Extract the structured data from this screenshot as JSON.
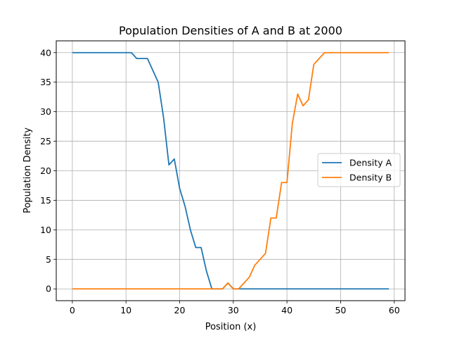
{
  "chart_data": {
    "type": "line",
    "title": "Population Densities of A and B at 2000",
    "xlabel": "Position (x)",
    "ylabel": "Population Density",
    "xlim": [
      -3,
      62
    ],
    "ylim": [
      -2,
      42
    ],
    "xticks": [
      0,
      10,
      20,
      30,
      40,
      50,
      60
    ],
    "yticks": [
      0,
      5,
      10,
      15,
      20,
      25,
      30,
      35,
      40
    ],
    "grid": true,
    "legend_position": "center-right",
    "x": [
      0,
      1,
      2,
      3,
      4,
      5,
      6,
      7,
      8,
      9,
      10,
      11,
      12,
      13,
      14,
      15,
      16,
      17,
      18,
      19,
      20,
      21,
      22,
      23,
      24,
      25,
      26,
      27,
      28,
      29,
      30,
      31,
      32,
      33,
      34,
      35,
      36,
      37,
      38,
      39,
      40,
      41,
      42,
      43,
      44,
      45,
      46,
      47,
      48,
      49,
      50,
      51,
      52,
      53,
      54,
      55,
      56,
      57,
      58,
      59
    ],
    "series": [
      {
        "name": "Density A",
        "color": "#1f77b4",
        "values": [
          40,
          40,
          40,
          40,
          40,
          40,
          40,
          40,
          40,
          40,
          40,
          40,
          39,
          39,
          39,
          37,
          35,
          29,
          21,
          22,
          17,
          14,
          10,
          7,
          7,
          3,
          0,
          0,
          0,
          1,
          0,
          0,
          0,
          0,
          0,
          0,
          0,
          0,
          0,
          0,
          0,
          0,
          0,
          0,
          0,
          0,
          0,
          0,
          0,
          0,
          0,
          0,
          0,
          0,
          0,
          0,
          0,
          0,
          0,
          0
        ]
      },
      {
        "name": "Density B",
        "color": "#ff7f0e",
        "values": [
          0,
          0,
          0,
          0,
          0,
          0,
          0,
          0,
          0,
          0,
          0,
          0,
          0,
          0,
          0,
          0,
          0,
          0,
          0,
          0,
          0,
          0,
          0,
          0,
          0,
          0,
          0,
          0,
          0,
          1,
          0,
          0,
          1,
          2,
          4,
          5,
          6,
          12,
          12,
          18,
          18,
          28,
          33,
          31,
          32,
          38,
          39,
          40,
          40,
          40,
          40,
          40,
          40,
          40,
          40,
          40,
          40,
          40,
          40,
          40
        ]
      }
    ]
  }
}
